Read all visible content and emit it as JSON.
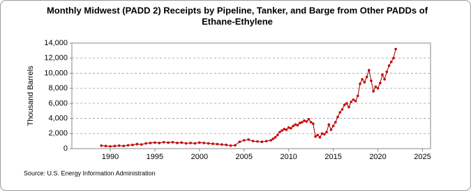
{
  "chart_data": {
    "type": "line",
    "title": [
      "Monthly Midwest (PADD 2) Receipts by Pipeline, Tanker, and Barge from Other PADDs of",
      "Ethane-Ethylene"
    ],
    "ylabel": "Thousand Barrels",
    "source": "Source: U.S. Energy Information Administration",
    "color": "#cc0000",
    "line_color": "#8b0000",
    "grid": true,
    "xlim": [
      1985.7,
      2025.9
    ],
    "xticks": [
      1990,
      1995,
      2000,
      2005,
      2010,
      2015,
      2020,
      2025
    ],
    "ylim": [
      0,
      14000
    ],
    "yticks": [
      0,
      {
        "value": 2000,
        "label": "2,000"
      },
      {
        "value": 4000,
        "label": "4,000"
      },
      {
        "value": 6000,
        "label": "6,000"
      },
      {
        "value": 8000,
        "label": "8,000"
      },
      {
        "value": 10000,
        "label": "10,000"
      },
      {
        "value": 12000,
        "label": "12,000"
      },
      {
        "value": 14000,
        "label": "14,000"
      }
    ],
    "x": [
      1989.0,
      1989.5,
      1990.0,
      1990.5,
      1991.0,
      1991.5,
      1992.0,
      1992.5,
      1993.0,
      1993.5,
      1994.0,
      1994.5,
      1995.0,
      1995.5,
      1996.0,
      1996.5,
      1997.0,
      1997.5,
      1998.0,
      1998.5,
      1999.0,
      1999.5,
      2000.0,
      2000.5,
      2001.0,
      2001.5,
      2002.0,
      2002.5,
      2003.0,
      2003.5,
      2004.0,
      2004.5,
      2005.0,
      2005.5,
      2006.0,
      2006.5,
      2007.0,
      2007.5,
      2008.0,
      2008.25,
      2008.5,
      2008.75,
      2009.0,
      2009.25,
      2009.5,
      2009.75,
      2010.0,
      2010.25,
      2010.5,
      2010.75,
      2011.0,
      2011.25,
      2011.5,
      2011.75,
      2012.0,
      2012.25,
      2012.5,
      2012.75,
      2013.0,
      2013.25,
      2013.5,
      2013.75,
      2014.0,
      2014.25,
      2014.5,
      2014.75,
      2015.0,
      2015.25,
      2015.5,
      2015.75,
      2016.0,
      2016.25,
      2016.5,
      2016.75,
      2017.0,
      2017.25,
      2017.5,
      2017.75,
      2018.0,
      2018.25,
      2018.5,
      2018.75,
      2019.0,
      2019.25,
      2019.5,
      2019.75,
      2020.0,
      2020.25,
      2020.5,
      2020.75,
      2021.0,
      2021.25,
      2021.5,
      2021.75,
      2022.0
    ],
    "values": [
      400,
      350,
      300,
      350,
      400,
      350,
      450,
      500,
      600,
      550,
      700,
      750,
      800,
      750,
      850,
      800,
      850,
      750,
      800,
      700,
      750,
      700,
      800,
      750,
      700,
      650,
      600,
      550,
      500,
      400,
      450,
      900,
      1100,
      1200,
      1000,
      950,
      900,
      1000,
      1100,
      1300,
      1500,
      1800,
      2200,
      2400,
      2600,
      2500,
      2800,
      2700,
      3000,
      3200,
      3100,
      3400,
      3500,
      3700,
      3600,
      3900,
      3500,
      3300,
      1600,
      1800,
      1500,
      2000,
      1900,
      2200,
      3200,
      2500,
      3000,
      3500,
      4200,
      4800,
      5200,
      5800,
      6000,
      5500,
      6200,
      6500,
      6300,
      7000,
      8600,
      9200,
      8800,
      9500,
      10400,
      9000,
      7600,
      8200,
      8000,
      8700,
      9800,
      9200,
      10200,
      11000,
      11500,
      12000,
      13200
    ]
  }
}
